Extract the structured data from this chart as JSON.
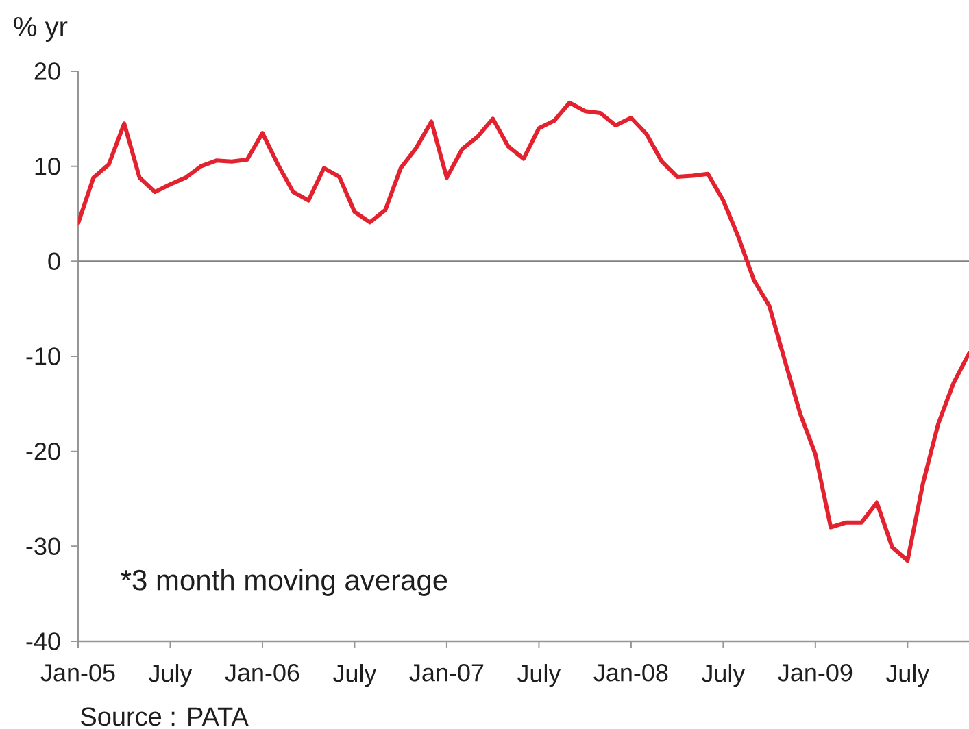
{
  "chart_data": {
    "type": "line",
    "ylabel": "% yr",
    "x": [
      "2005-01",
      "2005-02",
      "2005-03",
      "2005-04",
      "2005-05",
      "2005-06",
      "2005-07",
      "2005-08",
      "2005-09",
      "2005-10",
      "2005-11",
      "2005-12",
      "2006-01",
      "2006-02",
      "2006-03",
      "2006-04",
      "2006-05",
      "2006-06",
      "2006-07",
      "2006-08",
      "2006-09",
      "2006-10",
      "2006-11",
      "2006-12",
      "2007-01",
      "2007-02",
      "2007-03",
      "2007-04",
      "2007-05",
      "2007-06",
      "2007-07",
      "2007-08",
      "2007-09",
      "2007-10",
      "2007-11",
      "2007-12",
      "2008-01",
      "2008-02",
      "2008-03",
      "2008-04",
      "2008-05",
      "2008-06",
      "2008-07",
      "2008-08",
      "2008-09",
      "2008-10",
      "2008-11",
      "2008-12",
      "2009-01",
      "2009-02",
      "2009-03",
      "2009-04",
      "2009-05",
      "2009-06",
      "2009-07",
      "2009-08",
      "2009-09",
      "2009-10",
      "2009-11"
    ],
    "series": [
      {
        "color": "#e2222f",
        "values": [
          4.0,
          8.8,
          10.2,
          14.5,
          8.8,
          7.3,
          8.1,
          8.8,
          10.0,
          10.6,
          10.5,
          10.7,
          13.5,
          10.2,
          7.3,
          6.4,
          9.8,
          8.9,
          5.2,
          4.1,
          5.4,
          9.8,
          11.9,
          14.7,
          8.8,
          11.8,
          13.1,
          15.0,
          12.1,
          10.8,
          14.0,
          14.8,
          16.7,
          15.8,
          15.6,
          14.3,
          15.1,
          13.4,
          10.5,
          8.9,
          9.0,
          9.2,
          6.4,
          2.5,
          -2.0,
          -4.7,
          -10.4,
          -16.0,
          -20.3,
          -28.0,
          -27.5,
          -27.5,
          -25.4,
          -30.1,
          -31.5,
          -23.4,
          -17.1,
          -12.8,
          -9.7
        ]
      }
    ],
    "xlim": [
      "2005-01",
      "2009-11"
    ],
    "xticks": [
      {
        "value": "2005-01",
        "label": "Jan-05"
      },
      {
        "value": "2005-07",
        "label": "July"
      },
      {
        "value": "2006-01",
        "label": "Jan-06"
      },
      {
        "value": "2006-07",
        "label": "July"
      },
      {
        "value": "2007-01",
        "label": "Jan-07"
      },
      {
        "value": "2007-07",
        "label": "July"
      },
      {
        "value": "2008-01",
        "label": "Jan-08"
      },
      {
        "value": "2008-07",
        "label": "July"
      },
      {
        "value": "2009-01",
        "label": "Jan-09"
      },
      {
        "value": "2009-07",
        "label": "July"
      }
    ],
    "ylim": [
      -40,
      20
    ],
    "yticks": [
      -40,
      -30,
      -20,
      -10,
      0,
      10,
      20
    ],
    "ref_lines": [
      {
        "axis": "y",
        "value": 0,
        "color": "#808080"
      }
    ],
    "line_style": "solid",
    "annotations": [
      "*3 month moving average",
      "Source : PATA"
    ]
  }
}
